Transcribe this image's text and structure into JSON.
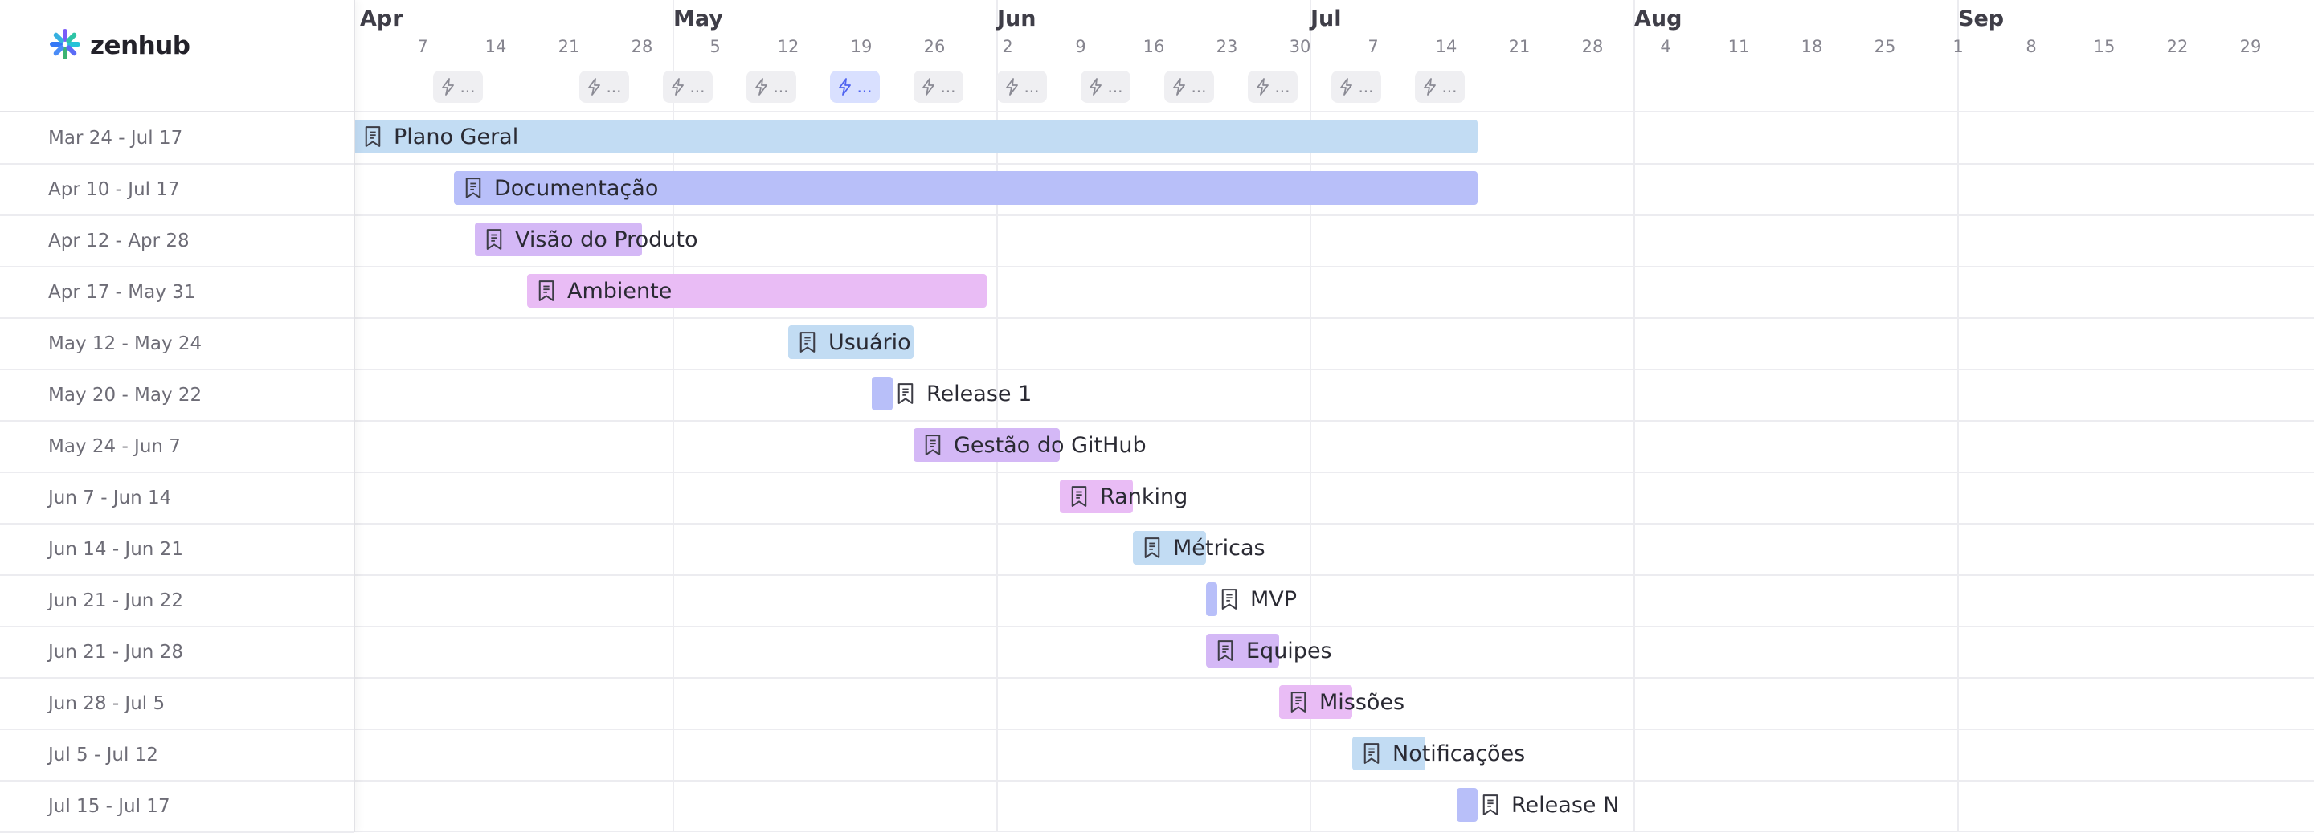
{
  "app": {
    "logo_text": "zenhub"
  },
  "timeline": {
    "months": [
      {
        "label": "Apr",
        "start": "2024-04-01"
      },
      {
        "label": "May",
        "start": "2024-05-01"
      },
      {
        "label": "Jun",
        "start": "2024-06-01"
      },
      {
        "label": "Jul",
        "start": "2024-07-01"
      },
      {
        "label": "Aug",
        "start": "2024-08-01"
      },
      {
        "label": "Sep",
        "start": "2024-09-01"
      }
    ],
    "days": [
      {
        "label": "7",
        "date": "2024-04-07"
      },
      {
        "label": "14",
        "date": "2024-04-14"
      },
      {
        "label": "21",
        "date": "2024-04-21"
      },
      {
        "label": "28",
        "date": "2024-04-28"
      },
      {
        "label": "5",
        "date": "2024-05-05"
      },
      {
        "label": "12",
        "date": "2024-05-12"
      },
      {
        "label": "19",
        "date": "2024-05-19"
      },
      {
        "label": "26",
        "date": "2024-05-26"
      },
      {
        "label": "2",
        "date": "2024-06-02"
      },
      {
        "label": "9",
        "date": "2024-06-09"
      },
      {
        "label": "16",
        "date": "2024-06-16"
      },
      {
        "label": "23",
        "date": "2024-06-23"
      },
      {
        "label": "30",
        "date": "2024-06-30"
      },
      {
        "label": "7",
        "date": "2024-07-07"
      },
      {
        "label": "14",
        "date": "2024-07-14"
      },
      {
        "label": "21",
        "date": "2024-07-21"
      },
      {
        "label": "28",
        "date": "2024-07-28"
      },
      {
        "label": "4",
        "date": "2024-08-04"
      },
      {
        "label": "11",
        "date": "2024-08-11"
      },
      {
        "label": "18",
        "date": "2024-08-18"
      },
      {
        "label": "25",
        "date": "2024-08-25"
      },
      {
        "label": "1",
        "date": "2024-09-01"
      },
      {
        "label": "8",
        "date": "2024-09-08"
      },
      {
        "label": "15",
        "date": "2024-09-15"
      },
      {
        "label": "22",
        "date": "2024-09-22"
      },
      {
        "label": "29",
        "date": "2024-09-29"
      }
    ],
    "sprints": [
      {
        "label": "...",
        "start": "2024-04-10",
        "active": false
      },
      {
        "label": "...",
        "start": "2024-04-24",
        "active": false
      },
      {
        "label": "...",
        "start": "2024-05-02",
        "active": false
      },
      {
        "label": "...",
        "start": "2024-05-10",
        "active": false
      },
      {
        "label": "...",
        "start": "2024-05-18",
        "active": true
      },
      {
        "label": "...",
        "start": "2024-05-26",
        "active": false
      },
      {
        "label": "...",
        "start": "2024-06-03",
        "active": false
      },
      {
        "label": "...",
        "start": "2024-06-11",
        "active": false
      },
      {
        "label": "...",
        "start": "2024-06-19",
        "active": false
      },
      {
        "label": "...",
        "start": "2024-06-27",
        "active": false
      },
      {
        "label": "...",
        "start": "2024-07-05",
        "active": false
      },
      {
        "label": "...",
        "start": "2024-07-13",
        "active": false
      }
    ]
  },
  "epics": [
    {
      "range": "Mar 24 - Jul 17",
      "title": "Plano Geral",
      "start": "2024-03-24",
      "end": "2024-07-17",
      "color": "#c2dcf3"
    },
    {
      "range": "Apr 10 - Jul 17",
      "title": "Documentação",
      "start": "2024-04-10",
      "end": "2024-07-17",
      "color": "#b8bff9"
    },
    {
      "range": "Apr 12 - Apr 28",
      "title": "Visão do Produto",
      "start": "2024-04-12",
      "end": "2024-04-28",
      "color": "#d4b8f6"
    },
    {
      "range": "Apr 17 - May 31",
      "title": "Ambiente",
      "start": "2024-04-17",
      "end": "2024-05-31",
      "color": "#e9bcf5"
    },
    {
      "range": "May 12 - May 24",
      "title": "Usuário",
      "start": "2024-05-12",
      "end": "2024-05-24",
      "color": "#c2dcf3"
    },
    {
      "range": "May 20 - May 22",
      "title": "Release 1",
      "start": "2024-05-20",
      "end": "2024-05-22",
      "color": "#b8bff9"
    },
    {
      "range": "May 24 - Jun 7",
      "title": "Gestão do GitHub",
      "start": "2024-05-24",
      "end": "2024-06-07",
      "color": "#d4b8f6"
    },
    {
      "range": "Jun 7 - Jun 14",
      "title": "Ranking",
      "start": "2024-06-07",
      "end": "2024-06-14",
      "color": "#e9bcf5"
    },
    {
      "range": "Jun 14 - Jun 21",
      "title": "Métricas",
      "start": "2024-06-14",
      "end": "2024-06-21",
      "color": "#c2dcf3"
    },
    {
      "range": "Jun 21 - Jun 22",
      "title": "MVP",
      "start": "2024-06-21",
      "end": "2024-06-22",
      "color": "#b8bff9"
    },
    {
      "range": "Jun 21 - Jun 28",
      "title": "Equipes",
      "start": "2024-06-21",
      "end": "2024-06-28",
      "color": "#d4b8f6"
    },
    {
      "range": "Jun 28 - Jul 5",
      "title": "Missões",
      "start": "2024-06-28",
      "end": "2024-07-05",
      "color": "#e9bcf5"
    },
    {
      "range": "Jul 5 - Jul 12",
      "title": "Notificações",
      "start": "2024-07-05",
      "end": "2024-07-12",
      "color": "#c2dcf3"
    },
    {
      "range": "Jul 15 - Jul 17",
      "title": "Release N",
      "start": "2024-07-15",
      "end": "2024-07-17",
      "color": "#b8bff9"
    }
  ]
}
